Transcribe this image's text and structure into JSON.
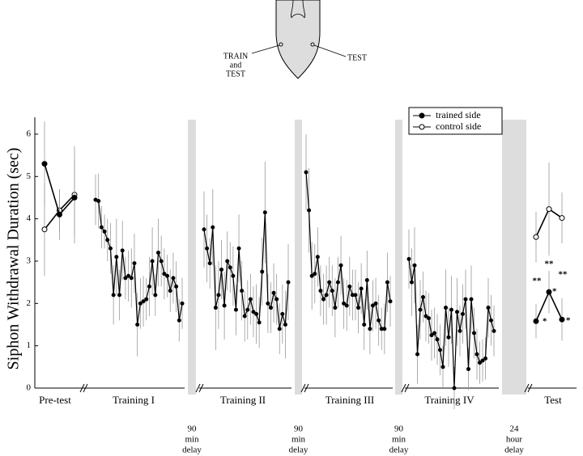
{
  "chart_data": {
    "type": "line",
    "ylabel": "Siphon Withdrawal Duration (sec)",
    "ylim": [
      0,
      6.4
    ],
    "yticks": [
      0,
      1,
      2,
      3,
      4,
      5,
      6
    ],
    "series": [
      {
        "name": "trained side",
        "color": "#000000",
        "marker": "filled"
      },
      {
        "name": "control side",
        "color": "#000000",
        "marker": "open"
      }
    ],
    "legend": "upper-right",
    "panels": [
      {
        "label": "Pre-test",
        "values": [
          5.3,
          4.1,
          4.5
        ],
        "errors": [
          1.0,
          0.6,
          0.9
        ],
        "control_values": [
          3.75,
          4.2,
          4.57
        ],
        "control_errors": [
          1.1,
          0.5,
          1.15
        ]
      },
      {
        "label": "Training I",
        "values": [
          4.45,
          4.42,
          3.8,
          3.7,
          3.5,
          3.3,
          2.2,
          3.1,
          2.2,
          3.25,
          2.6,
          2.65,
          2.6,
          2.95,
          1.5,
          2.0,
          2.05,
          2.1,
          2.4,
          3.0,
          2.2,
          3.2,
          3.0,
          2.7,
          2.65,
          2.3,
          2.6,
          2.4,
          1.6,
          2.0
        ],
        "errors": [
          0.6,
          0.65,
          0.5,
          0.4,
          0.5,
          0.6,
          0.7,
          0.9,
          0.6,
          0.7,
          0.5,
          0.6,
          0.7,
          0.7,
          0.75,
          0.6,
          0.6,
          0.5,
          0.7,
          0.8,
          0.5,
          0.8,
          0.6,
          0.6,
          0.5,
          0.5,
          0.6,
          0.6,
          0.5,
          0.6
        ]
      },
      {
        "label": "Training II",
        "values": [
          3.75,
          3.3,
          2.95,
          3.8,
          1.9,
          2.2,
          2.8,
          1.95,
          3.0,
          2.85,
          2.65,
          1.85,
          3.3,
          2.3,
          1.7,
          1.85,
          2.1,
          1.8,
          1.75,
          1.55,
          2.75,
          4.15,
          2.0,
          1.9,
          2.25,
          2.1,
          1.4,
          1.75,
          1.5,
          2.5
        ],
        "errors": [
          0.9,
          0.8,
          0.6,
          0.9,
          1.0,
          0.8,
          0.7,
          0.8,
          0.7,
          0.6,
          0.7,
          0.6,
          0.8,
          0.7,
          0.6,
          0.7,
          0.6,
          0.6,
          0.7,
          0.6,
          0.8,
          1.2,
          0.7,
          0.6,
          0.7,
          0.6,
          0.6,
          0.7,
          0.8,
          0.9
        ]
      },
      {
        "label": "Training III",
        "values": [
          5.1,
          4.2,
          2.65,
          2.7,
          3.1,
          2.3,
          2.1,
          2.2,
          2.5,
          2.3,
          1.9,
          2.5,
          2.9,
          2.0,
          1.95,
          2.4,
          2.2,
          2.2,
          1.9,
          2.35,
          1.5,
          2.55,
          1.4,
          1.95,
          2.0,
          1.6,
          1.4,
          1.4,
          2.5,
          2.05
        ],
        "errors": [
          0.9,
          1.0,
          0.8,
          0.7,
          0.7,
          0.6,
          0.6,
          0.7,
          0.6,
          0.6,
          0.7,
          0.6,
          0.7,
          0.6,
          0.6,
          0.7,
          0.6,
          0.6,
          0.6,
          0.6,
          0.6,
          0.7,
          0.6,
          0.6,
          0.6,
          0.6,
          0.5,
          0.6,
          0.7,
          0.6
        ]
      },
      {
        "label": "Training IV",
        "values": [
          3.05,
          2.5,
          2.9,
          0.8,
          1.85,
          2.15,
          1.7,
          1.65,
          1.25,
          1.3,
          1.15,
          0.9,
          0.5,
          1.9,
          1.2,
          1.85,
          0,
          1.8,
          1.35,
          1.75,
          2.1,
          0.45,
          2.1,
          1.3,
          0.8,
          0.6,
          0.65,
          0.7,
          1.9,
          1.6,
          1.35
        ],
        "errors": [
          0.7,
          0.8,
          0.9,
          0.7,
          0.7,
          0.6,
          0.6,
          0.6,
          0.6,
          0.6,
          0.6,
          0.6,
          0.5,
          0.9,
          0.7,
          0.8,
          0.5,
          0.8,
          0.6,
          0.7,
          0.7,
          0.5,
          0.8,
          0.6,
          0.6,
          0.5,
          0.5,
          0.5,
          0.7,
          0.6,
          0.6
        ]
      },
      {
        "label": "Test",
        "values": [
          1.58,
          2.27,
          1.62
        ],
        "errors": [
          0.4,
          0.5,
          0.5
        ],
        "control_values": [
          3.57,
          4.23,
          4.02
        ],
        "control_errors": [
          0.6,
          1.1,
          0.6
        ]
      }
    ],
    "delays": [
      {
        "lines": [
          "90",
          "min",
          "delay"
        ]
      },
      {
        "lines": [
          "90",
          "min",
          "delay"
        ]
      },
      {
        "lines": [
          "90",
          "min",
          "delay"
        ]
      },
      {
        "lines": [
          "24",
          "hour",
          "delay"
        ]
      }
    ],
    "annotations": [
      "*",
      "**",
      "**",
      "*",
      "**",
      "*"
    ],
    "diagram": {
      "left_label": [
        "TRAIN",
        "and",
        "TEST"
      ],
      "right_label": "TEST"
    }
  }
}
